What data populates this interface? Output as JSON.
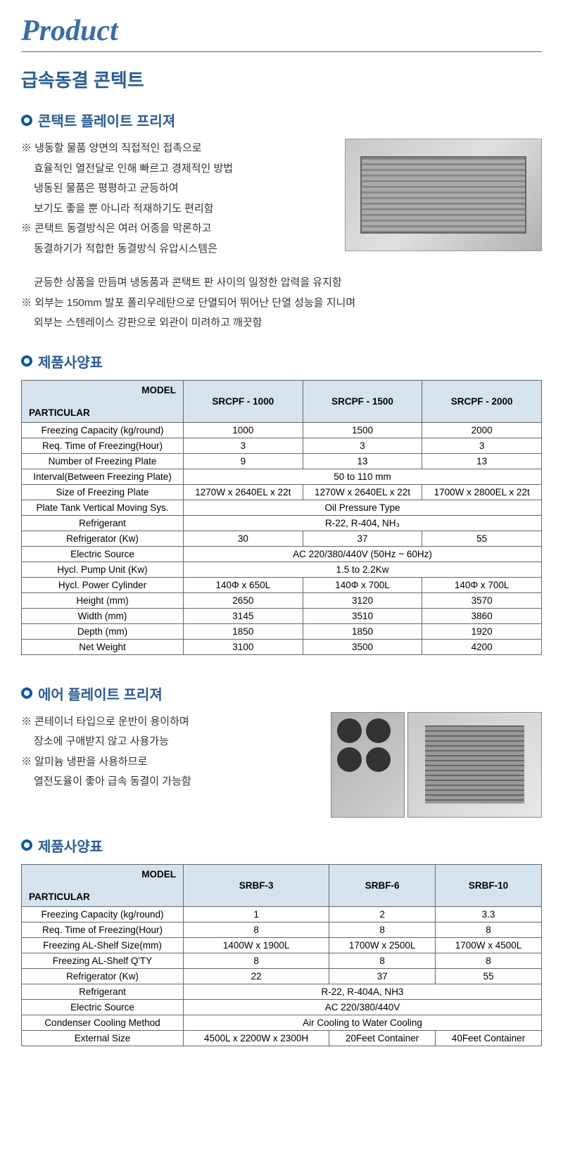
{
  "headings": {
    "product": "Product",
    "page_title": "급속동결 콘텍트"
  },
  "section1": {
    "title": "콘택트 플레이트 프리져",
    "desc": [
      {
        "mark": true,
        "text": "냉동할 물품 양면의 직접적인 접촉으로"
      },
      {
        "mark": false,
        "text": "효율적인 열전달로 인해 빠르고 경제적인 방법"
      },
      {
        "mark": false,
        "text": "냉동된 물품은 평평하고 균등하여"
      },
      {
        "mark": false,
        "text": "보기도 좋을 뿐 아니라 적재하기도 편리함"
      },
      {
        "mark": true,
        "text": "콘택트 동결방식은 여러 어종을 막론하고"
      },
      {
        "mark": false,
        "text": "동결하기가 적합한 동결방식 유압시스템은"
      },
      {
        "mark": false,
        "text": "균등한 상품을 만듬며 냉동품과 콘택트 판 사이의 일정한 압력을 유지함"
      },
      {
        "mark": true,
        "text": "외부는 150mm 발포 폴리우레탄으로 단열되어 뛰어난 단열 성능을 지니며"
      },
      {
        "mark": false,
        "text": "외부는 스텐레이스 강판으로 외관이 미려하고 깨끗함"
      }
    ]
  },
  "spec_title": "제품사양표",
  "table1": {
    "header_model": "MODEL",
    "header_particular": "PARTICULAR",
    "models": [
      "SRCPF - 1000",
      "SRCPF - 1500",
      "SRCPF - 2000"
    ],
    "rows": [
      {
        "label": "Freezing Capacity (kg/round)",
        "cells": [
          "1000",
          "1500",
          "2000"
        ]
      },
      {
        "label": "Req. Time of Freezing(Hour)",
        "cells": [
          "3",
          "3",
          "3"
        ]
      },
      {
        "label": "Number of Freezing Plate",
        "cells": [
          "9",
          "13",
          "13"
        ]
      },
      {
        "label": "Interval(Between Freezing Plate)",
        "span": "50 to 110 mm"
      },
      {
        "label": "Size of Freezing Plate",
        "cells": [
          "1270W x 2640EL x 22t",
          "1270W x 2640EL x 22t",
          "1700W x 2800EL x 22t"
        ]
      },
      {
        "label": "Plate Tank Vertical Moving Sys.",
        "span": "Oil Pressure Type"
      },
      {
        "label": "Refrigerant",
        "span": "R-22, R-404, NH₃"
      },
      {
        "label": "Refrigerator (Kw)",
        "cells": [
          "30",
          "37",
          "55"
        ]
      },
      {
        "label": "Electric Source",
        "span": "AC 220/380/440V (50Hz ~ 60Hz)"
      },
      {
        "label": "Hycl. Pump Unit (Kw)",
        "span": "1.5 to 2.2Kw"
      },
      {
        "label": "Hycl. Power Cylinder",
        "cells": [
          "140Φ x 650L",
          "140Φ x 700L",
          "140Φ x 700L"
        ]
      },
      {
        "label": "Height (mm)",
        "cells": [
          "2650",
          "3120",
          "3570"
        ]
      },
      {
        "label": "Width (mm)",
        "cells": [
          "3145",
          "3510",
          "3860"
        ]
      },
      {
        "label": "Depth (mm)",
        "cells": [
          "1850",
          "1850",
          "1920"
        ]
      },
      {
        "label": "Net Weight",
        "cells": [
          "3100",
          "3500",
          "4200"
        ]
      }
    ]
  },
  "section2": {
    "title": "에어 플레이트 프리져",
    "desc": [
      {
        "mark": true,
        "text": "콘테이너 타입으로 운반이 용이하며"
      },
      {
        "mark": false,
        "text": "장소에 구애받지 않고 사용가능"
      },
      {
        "mark": true,
        "text": "알미늄 냉판을 사용하므로"
      },
      {
        "mark": false,
        "text": "열전도율이 좋아 급속 동결이 가능함"
      }
    ]
  },
  "table2": {
    "header_model": "MODEL",
    "header_particular": "PARTICULAR",
    "models": [
      "SRBF-3",
      "SRBF-6",
      "SRBF-10"
    ],
    "rows": [
      {
        "label": "Freezing Capacity (kg/round)",
        "cells": [
          "1",
          "2",
          "3.3"
        ]
      },
      {
        "label": "Req. Time of Freezing(Hour)",
        "cells": [
          "8",
          "8",
          "8"
        ]
      },
      {
        "label": "Freezing AL-Shelf Size(mm)",
        "cells": [
          "1400W x 1900L",
          "1700W x 2500L",
          "1700W x 4500L"
        ]
      },
      {
        "label": "Freezing AL-Shelf Q'TY",
        "cells": [
          "8",
          "8",
          "8"
        ]
      },
      {
        "label": "Refrigerator (Kw)",
        "cells": [
          "22",
          "37",
          "55"
        ]
      },
      {
        "label": "Refrigerant",
        "span": "R-22, R-404A, NH3"
      },
      {
        "label": "Electric Source",
        "span": "AC 220/380/440V"
      },
      {
        "label": "Condenser Cooling Method",
        "span": "Air Cooling to Water Cooling"
      },
      {
        "label": "External Size",
        "cells": [
          "4500L x 2200W x 2300H",
          "20Feet Container",
          "40Feet Container"
        ]
      }
    ]
  }
}
